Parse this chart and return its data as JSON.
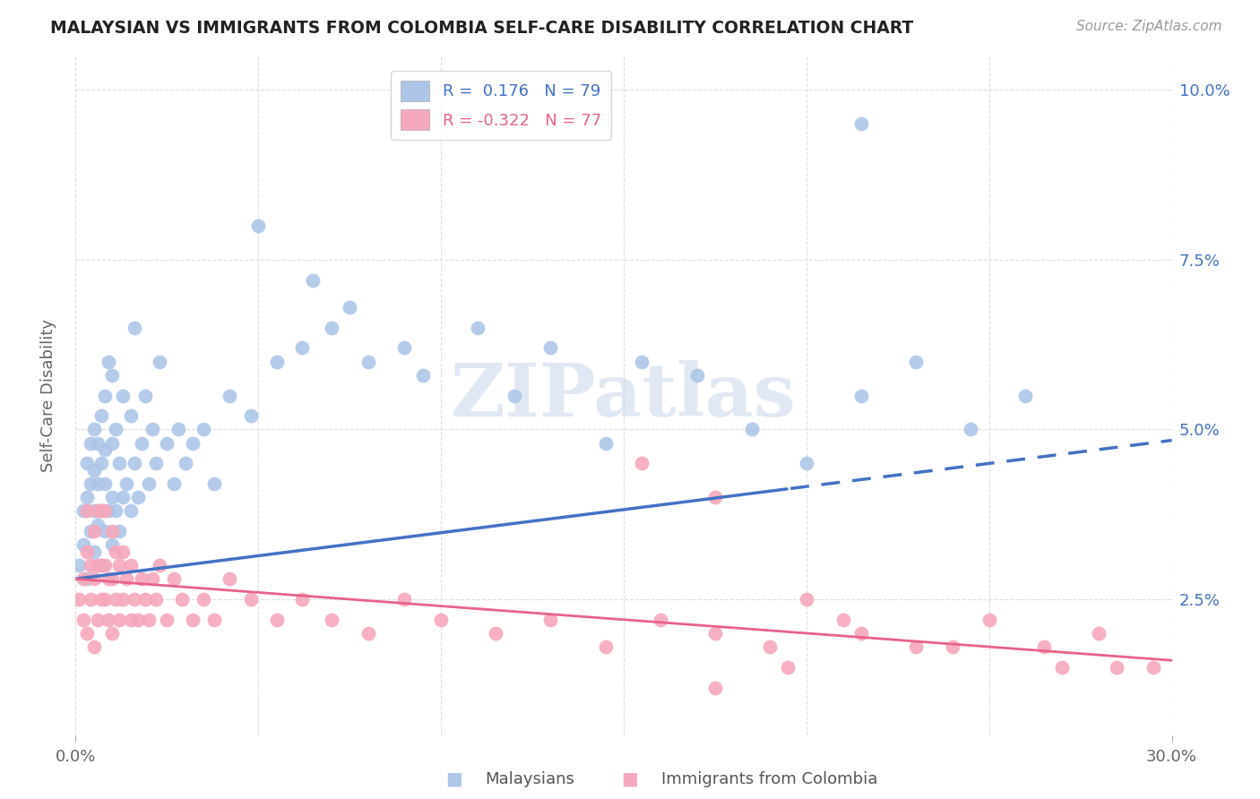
{
  "title": "MALAYSIAN VS IMMIGRANTS FROM COLOMBIA SELF-CARE DISABILITY CORRELATION CHART",
  "source": "Source: ZipAtlas.com",
  "ylabel": "Self-Care Disability",
  "xmin": 0.0,
  "xmax": 0.3,
  "ymin": 0.005,
  "ymax": 0.105,
  "ytick_vals": [
    0.025,
    0.05,
    0.075,
    0.1
  ],
  "ytick_labels": [
    "2.5%",
    "5.0%",
    "7.5%",
    "10.0%"
  ],
  "xtick_show": [
    0.0,
    0.3
  ],
  "xtick_labels": [
    "0.0%",
    "30.0%"
  ],
  "xtick_minor": [
    0.05,
    0.1,
    0.15,
    0.2,
    0.25
  ],
  "color_blue": "#adc6e8",
  "color_pink": "#f5a8bc",
  "line_blue": "#4472c4",
  "line_pink": "#e8638a",
  "line_blue_solid_end": 0.195,
  "watermark_text": "ZIPatlas",
  "legend_label1": "R =  0.176   N = 79",
  "legend_label2": "R = -0.322   N = 77",
  "blue_intercept": 0.028,
  "blue_slope": 0.068,
  "pink_intercept": 0.028,
  "pink_slope": -0.04,
  "malaysian_x": [
    0.001,
    0.002,
    0.002,
    0.003,
    0.003,
    0.003,
    0.004,
    0.004,
    0.004,
    0.005,
    0.005,
    0.005,
    0.005,
    0.006,
    0.006,
    0.006,
    0.007,
    0.007,
    0.007,
    0.007,
    0.008,
    0.008,
    0.008,
    0.008,
    0.009,
    0.009,
    0.01,
    0.01,
    0.01,
    0.01,
    0.011,
    0.011,
    0.012,
    0.012,
    0.013,
    0.013,
    0.014,
    0.015,
    0.015,
    0.016,
    0.016,
    0.017,
    0.018,
    0.019,
    0.02,
    0.021,
    0.022,
    0.023,
    0.025,
    0.027,
    0.028,
    0.03,
    0.032,
    0.035,
    0.038,
    0.042,
    0.048,
    0.055,
    0.062,
    0.07,
    0.08,
    0.09,
    0.095,
    0.11,
    0.12,
    0.13,
    0.145,
    0.155,
    0.17,
    0.185,
    0.2,
    0.215,
    0.23,
    0.245,
    0.26,
    0.215,
    0.05,
    0.065,
    0.075
  ],
  "malaysian_y": [
    0.03,
    0.033,
    0.038,
    0.028,
    0.04,
    0.045,
    0.035,
    0.042,
    0.048,
    0.032,
    0.038,
    0.044,
    0.05,
    0.036,
    0.042,
    0.048,
    0.03,
    0.038,
    0.045,
    0.052,
    0.035,
    0.042,
    0.047,
    0.055,
    0.038,
    0.06,
    0.033,
    0.04,
    0.048,
    0.058,
    0.038,
    0.05,
    0.035,
    0.045,
    0.04,
    0.055,
    0.042,
    0.038,
    0.052,
    0.045,
    0.065,
    0.04,
    0.048,
    0.055,
    0.042,
    0.05,
    0.045,
    0.06,
    0.048,
    0.042,
    0.05,
    0.045,
    0.048,
    0.05,
    0.042,
    0.055,
    0.052,
    0.06,
    0.062,
    0.065,
    0.06,
    0.062,
    0.058,
    0.065,
    0.055,
    0.062,
    0.048,
    0.06,
    0.058,
    0.05,
    0.045,
    0.055,
    0.06,
    0.05,
    0.055,
    0.095,
    0.08,
    0.072,
    0.068
  ],
  "colombia_x": [
    0.001,
    0.002,
    0.002,
    0.003,
    0.003,
    0.003,
    0.004,
    0.004,
    0.005,
    0.005,
    0.005,
    0.006,
    0.006,
    0.006,
    0.007,
    0.007,
    0.007,
    0.008,
    0.008,
    0.008,
    0.009,
    0.009,
    0.01,
    0.01,
    0.01,
    0.011,
    0.011,
    0.012,
    0.012,
    0.013,
    0.013,
    0.014,
    0.015,
    0.015,
    0.016,
    0.017,
    0.018,
    0.019,
    0.02,
    0.021,
    0.022,
    0.023,
    0.025,
    0.027,
    0.029,
    0.032,
    0.035,
    0.038,
    0.042,
    0.048,
    0.055,
    0.062,
    0.07,
    0.08,
    0.09,
    0.1,
    0.115,
    0.13,
    0.145,
    0.16,
    0.175,
    0.19,
    0.2,
    0.215,
    0.23,
    0.25,
    0.265,
    0.28,
    0.295,
    0.155,
    0.175,
    0.21,
    0.24,
    0.27,
    0.285,
    0.175,
    0.195
  ],
  "colombia_y": [
    0.025,
    0.022,
    0.028,
    0.02,
    0.032,
    0.038,
    0.025,
    0.03,
    0.018,
    0.028,
    0.035,
    0.022,
    0.03,
    0.038,
    0.025,
    0.03,
    0.038,
    0.025,
    0.03,
    0.038,
    0.022,
    0.028,
    0.02,
    0.028,
    0.035,
    0.025,
    0.032,
    0.022,
    0.03,
    0.025,
    0.032,
    0.028,
    0.022,
    0.03,
    0.025,
    0.022,
    0.028,
    0.025,
    0.022,
    0.028,
    0.025,
    0.03,
    0.022,
    0.028,
    0.025,
    0.022,
    0.025,
    0.022,
    0.028,
    0.025,
    0.022,
    0.025,
    0.022,
    0.02,
    0.025,
    0.022,
    0.02,
    0.022,
    0.018,
    0.022,
    0.02,
    0.018,
    0.025,
    0.02,
    0.018,
    0.022,
    0.018,
    0.02,
    0.015,
    0.045,
    0.04,
    0.022,
    0.018,
    0.015,
    0.015,
    0.012,
    0.015
  ]
}
